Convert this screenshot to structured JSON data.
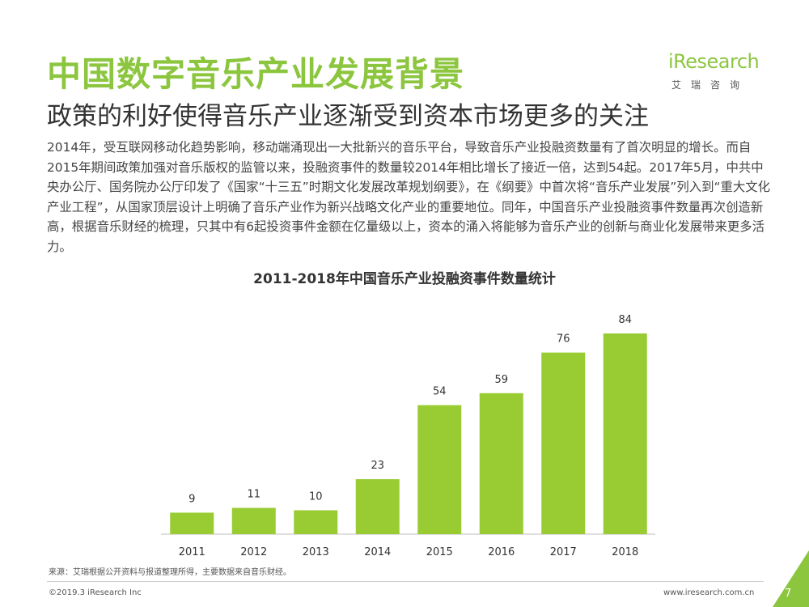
{
  "header": {
    "title": "中国数字音乐产业发展背景",
    "subtitle": "政策的利好使得音乐产业逐渐受到资本市场更多的关注"
  },
  "logo": {
    "word": "iResearch",
    "cn": "艾瑞咨询"
  },
  "body_text": "2014年，受互联网移动化趋势影响，移动端涌现出一大批新兴的音乐平台，导致音乐产业投融资数量有了首次明显的增长。而自2015年期间政策加强对音乐版权的监管以来，投融资事件的数量较2014年相比增长了接近一倍，达到54起。2017年5月，中共中央办公厅、国务院办公厅印发了《国家“十三五”时期文化发展改革规划纲要》，在《纲要》中首次将“音乐产业发展”列入到“重大文化产业工程”，从国家顶层设计上明确了音乐产业作为新兴战略文化产业的重要地位。同年，中国音乐产业投融资事件数量再次创造新高，根据音乐财经的梳理，只其中有6起投资事件金额在亿量级以上，资本的涌入将能够为音乐产业的创新与商业化发展带来更多活力。",
  "chart_data": {
    "type": "bar",
    "title": "2011-2018年中国音乐产业投融资事件数量统计",
    "categories": [
      "2011",
      "2012",
      "2013",
      "2014",
      "2015",
      "2016",
      "2017",
      "2018"
    ],
    "values": [
      9,
      11,
      10,
      23,
      54,
      59,
      76,
      84
    ],
    "xlabel": "",
    "ylabel": "",
    "ylim": [
      0,
      90
    ],
    "grid": false,
    "bar_color": "#99cc33"
  },
  "footer": {
    "source": "来源：艾瑞根据公开资料与报道整理所得，主要数据来自音乐财经。",
    "copyright": "©2019.3 iResearch Inc",
    "site": "www.iresearch.com.cn",
    "page": "7"
  },
  "colors": {
    "accent": "#8cc63f"
  }
}
